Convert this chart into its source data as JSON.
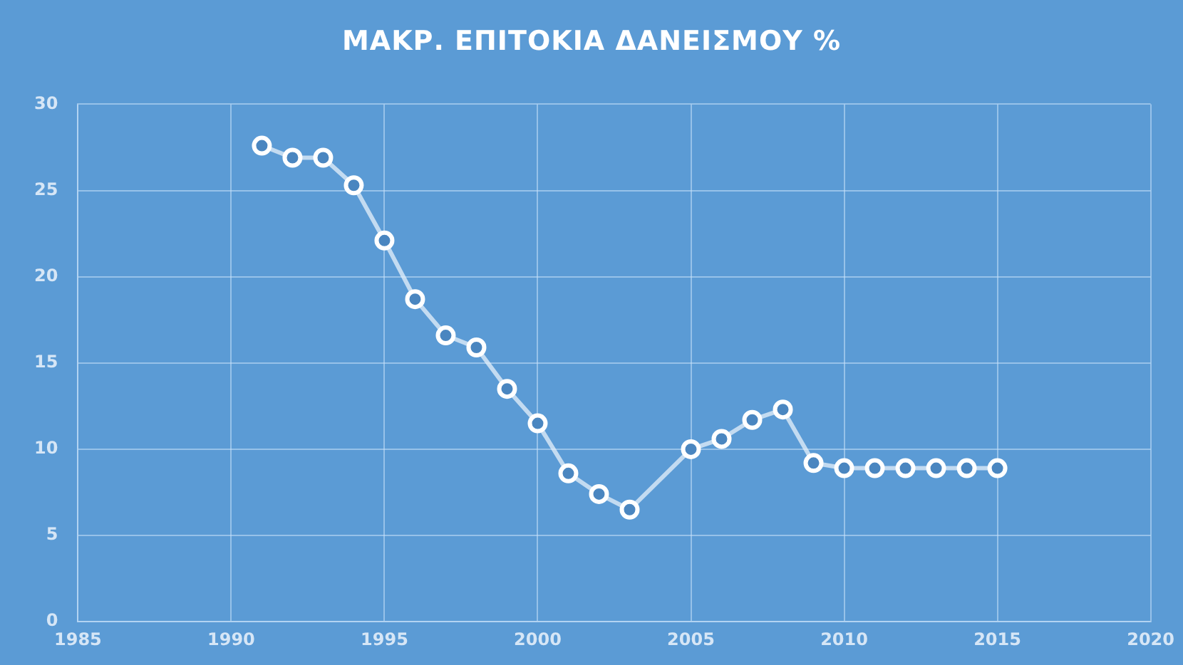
{
  "chart_data": {
    "type": "line",
    "title": "ΜΑΚΡ. ΕΠΙΤΟΚΙΑ ΔΑΝΕΙΣΜΟΥ %",
    "x": [
      1991,
      1992,
      1993,
      1994,
      1995,
      1996,
      1997,
      1998,
      1999,
      2000,
      2001,
      2002,
      2003,
      2005,
      2006,
      2007,
      2008,
      2009,
      2010,
      2011,
      2012,
      2013,
      2014,
      2015
    ],
    "series": [
      {
        "color": "#ffffff",
        "values": [
          27.6,
          26.9,
          26.9,
          25.3,
          22.1,
          18.7,
          16.6,
          15.9,
          13.5,
          11.5,
          8.6,
          7.4,
          6.5,
          10.0,
          10.6,
          11.7,
          12.3,
          9.2,
          8.9,
          8.9,
          8.9,
          8.9,
          8.9,
          8.9
        ]
      }
    ],
    "xlim": [
      1985,
      2020
    ],
    "xticks": [
      1985,
      1990,
      1995,
      2000,
      2005,
      2010,
      2015,
      2020
    ],
    "ylim": [
      0,
      30
    ],
    "yticks": [
      0,
      5,
      10,
      15,
      20,
      25,
      30
    ],
    "grid": true,
    "legend": false,
    "marker": "circle",
    "line_style": "solid"
  }
}
